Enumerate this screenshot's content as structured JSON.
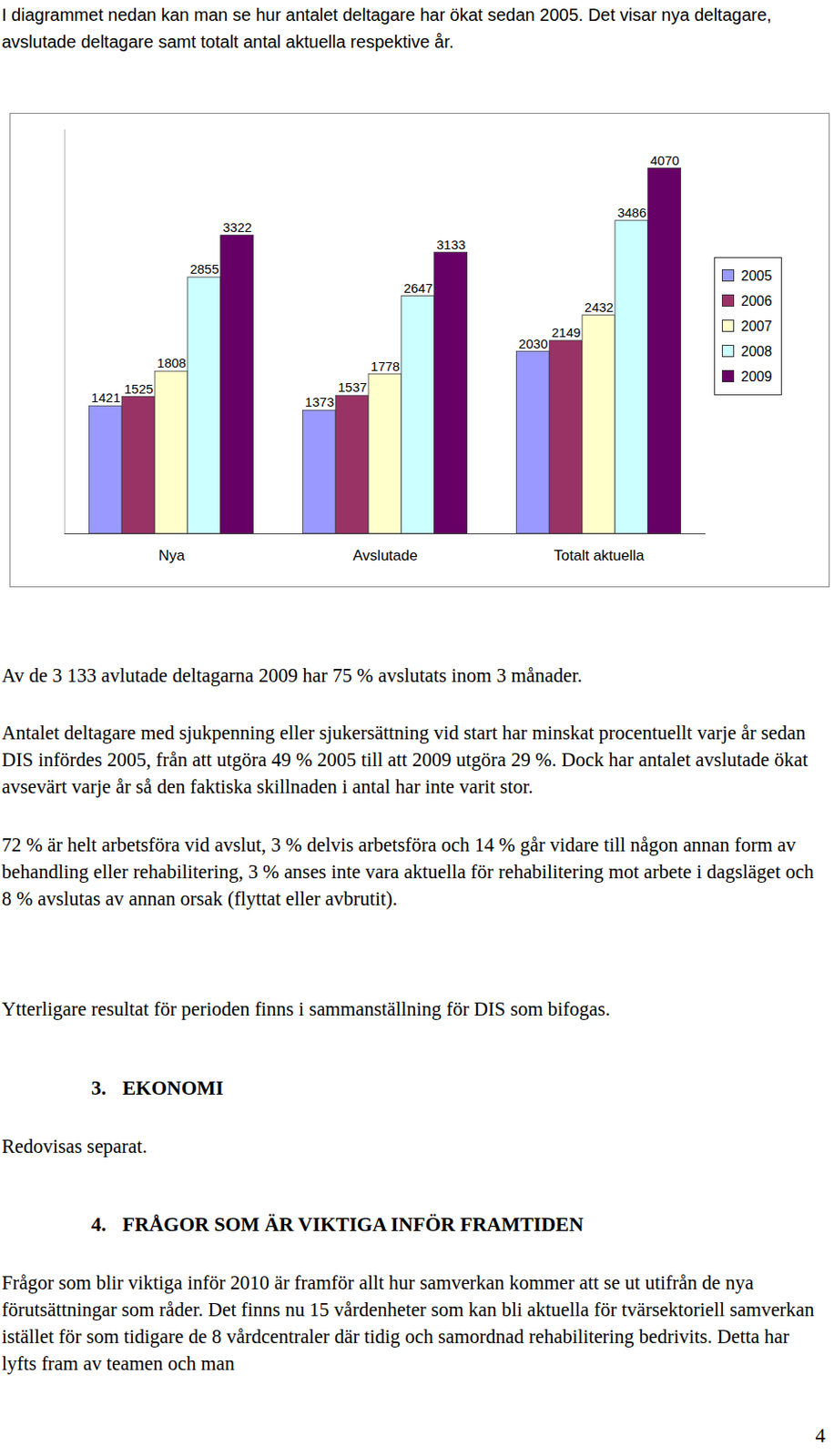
{
  "document": {
    "intro": "I diagrammet nedan kan man se hur antalet deltagare har ökat sedan 2005. Det visar nya deltagare, avslutade deltagare samt totalt antal aktuella respektive år.",
    "paragraphs": [
      "Av de 3 133 avlutade deltagarna 2009 har 75 % avslutats inom 3 månader.",
      "Antalet deltagare med sjukpenning eller sjukersättning vid start har minskat procentuellt varje år sedan DIS infördes 2005, från att utgöra 49 % 2005 till att 2009 utgöra 29 %. Dock har antalet avslutade ökat avsevärt varje år så den faktiska skillnaden i antal har inte varit stor.",
      "72 % är helt arbetsföra vid avslut, 3 % delvis arbetsföra och 14 % går vidare till någon annan form av behandling eller rehabilitering, 3 % anses inte vara aktuella för rehabilitering mot arbete i dagsläget och 8 % avslutas av annan orsak (flyttat eller avbrutit).",
      "Ytterligare resultat för perioden finns i sammanställning för DIS som bifogas."
    ],
    "sections": [
      {
        "number": "3.",
        "title": "EKONOMI",
        "paragraphs": [
          "Redovisas separat."
        ]
      },
      {
        "number": "4.",
        "title": "FRÅGOR SOM ÄR VIKTIGA INFÖR FRAMTIDEN",
        "paragraphs": [
          "Frågor som blir viktiga inför 2010 är framför allt hur samverkan kommer att se ut utifrån de nya förutsättningar som råder. Det finns nu 15 vårdenheter som kan bli aktuella för tvärsektoriell samverkan istället för som tidigare de 8 vårdcentraler där tidig och samordnad rehabilitering bedrivits. Detta har lyfts fram av teamen och man"
        ]
      }
    ],
    "page_number": "4"
  },
  "chart_data": {
    "type": "bar",
    "categories": [
      "Nya",
      "Avslutade",
      "Totalt aktuella"
    ],
    "series": [
      {
        "name": "2005",
        "color": "#9999ff",
        "values": [
          1421,
          1373,
          2030
        ]
      },
      {
        "name": "2006",
        "color": "#993366",
        "values": [
          1525,
          1537,
          2149
        ]
      },
      {
        "name": "2007",
        "color": "#ffffcc",
        "values": [
          1808,
          1778,
          2432
        ]
      },
      {
        "name": "2008",
        "color": "#ccffff",
        "values": [
          2855,
          2647,
          3486
        ]
      },
      {
        "name": "2009",
        "color": "#660066",
        "values": [
          3322,
          3133,
          4070
        ]
      }
    ],
    "ylim": [
      0,
      4500
    ],
    "yticks": [],
    "grid": false,
    "legend": "right",
    "data_labels": true,
    "tick_labels": "x"
  }
}
